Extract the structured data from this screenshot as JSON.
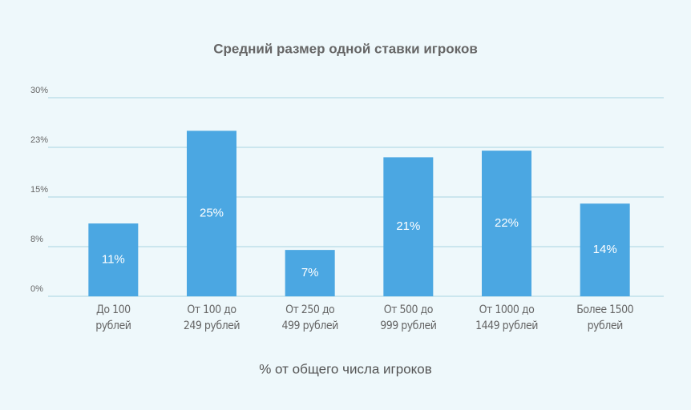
{
  "chart_data": {
    "type": "bar",
    "title": "Средний размер одной ставки игроков",
    "x_label": "% от общего числа игроков",
    "categories": [
      "До 100\nрублей",
      "От 100 до\n249 рублей",
      "От 250 до\n499 рублей",
      "От 500 до\n999 рублей",
      "От 1000 до\n1449 рублей",
      "Более 1500\nрублей"
    ],
    "values": [
      11,
      25,
      7,
      21,
      22,
      14
    ],
    "value_labels": [
      "11%",
      "25%",
      "7%",
      "21%",
      "22%",
      "14%"
    ],
    "color": "#4ba7e2",
    "ylim": [
      0,
      30
    ],
    "yticks": [
      {
        "value": 0,
        "label": "0%"
      },
      {
        "value": 7.5,
        "label": "8%"
      },
      {
        "value": 15,
        "label": "15%"
      },
      {
        "value": 22.5,
        "label": "23%"
      },
      {
        "value": 30,
        "label": "30%"
      }
    ],
    "grid": true
  }
}
